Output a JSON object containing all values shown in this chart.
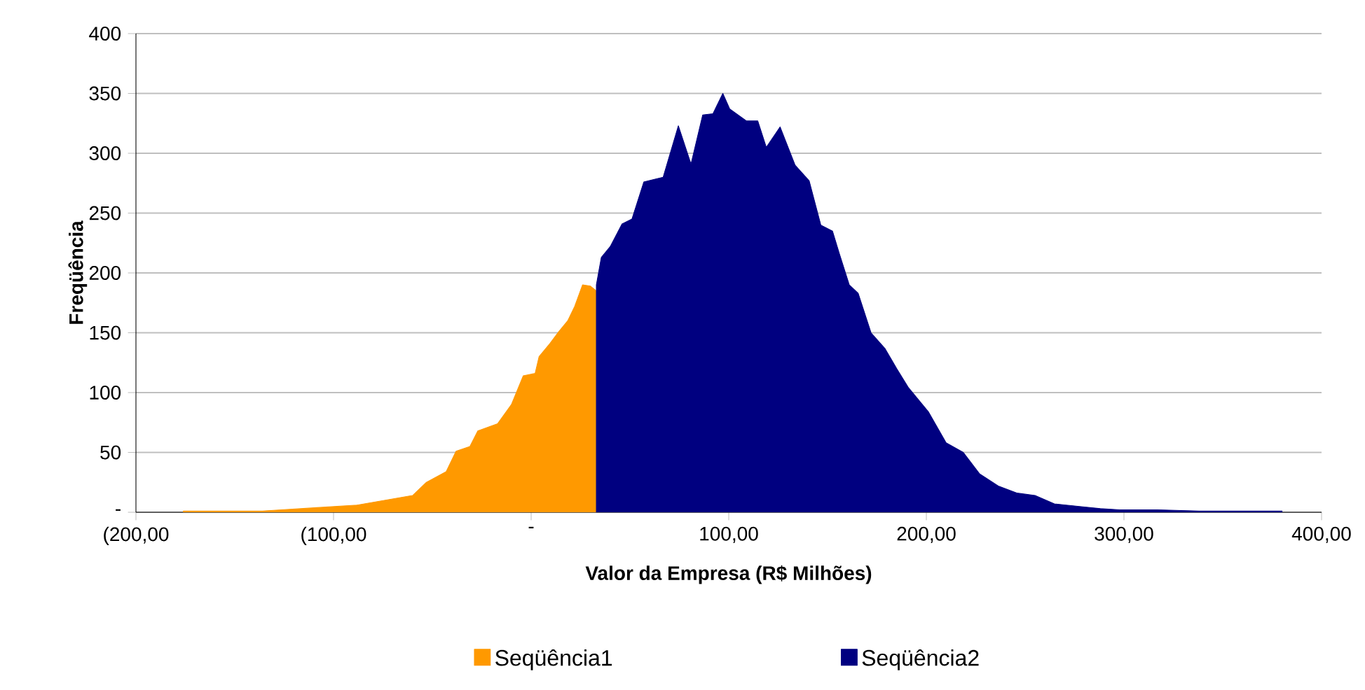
{
  "chart_data": {
    "type": "area",
    "xlabel": "Valor da Empresa (R$ Milhões)",
    "ylabel": "Freqüência",
    "xlim": [
      -200,
      400
    ],
    "ylim": [
      0,
      400
    ],
    "xticks": [
      {
        "value": -200,
        "label": "(200,00"
      },
      {
        "value": -100,
        "label": "(100,00"
      },
      {
        "value": 0,
        "label": "-"
      },
      {
        "value": 100,
        "label": "100,00"
      },
      {
        "value": 200,
        "label": "200,00"
      },
      {
        "value": 300,
        "label": "300,00"
      },
      {
        "value": 400,
        "label": "400,00"
      }
    ],
    "yticks": [
      {
        "value": 0,
        "label": "-"
      },
      50,
      100,
      150,
      200,
      250,
      300,
      350,
      400
    ],
    "grid": "y",
    "legend": "bottom",
    "series": [
      {
        "name": "Seqüência1",
        "color": "#ff9900",
        "x": [
          -176,
          -136,
          -107,
          -88,
          -74,
          -60,
          -53,
          -43,
          -38,
          -31,
          -27,
          -17,
          -10,
          -4,
          2,
          4,
          9.5,
          14,
          18.5,
          22,
          26,
          30,
          33
        ],
        "values": [
          1,
          1,
          4,
          6,
          10,
          14,
          25,
          34,
          51,
          55,
          68,
          74,
          90,
          114,
          116,
          130,
          141,
          151,
          160,
          172,
          190,
          189,
          185
        ]
      },
      {
        "name": "Seqüência2",
        "color": "#000080",
        "x": [
          33,
          35.5,
          40,
          46,
          51,
          57,
          66.8,
          74.5,
          80.9,
          86.8,
          92,
          97,
          100.5,
          109,
          114.7,
          119,
          126,
          133.6,
          140.7,
          146.6,
          152.5,
          156,
          161,
          165.5,
          172,
          179,
          185,
          191,
          201,
          210,
          218.7,
          227,
          236.4,
          246,
          255,
          264.8,
          276.6,
          288,
          297.8,
          316.7,
          338,
          380
        ],
        "values": [
          190,
          213,
          222,
          241,
          245,
          276,
          280,
          323,
          291,
          332,
          333,
          350,
          337,
          327,
          327,
          305,
          322,
          290,
          277,
          240,
          235,
          216,
          190,
          183,
          150,
          137,
          120,
          104,
          84,
          58,
          50,
          32,
          22,
          16,
          14,
          7,
          5,
          3,
          2,
          2,
          1,
          1
        ]
      }
    ]
  }
}
